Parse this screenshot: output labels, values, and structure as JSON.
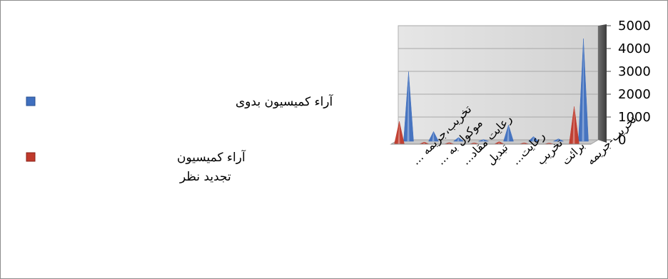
{
  "chart_data": {
    "type": "bar",
    "categories": [
      "تخریب،جریمه ...",
      "موکول به ...",
      "رعایت مقاد...",
      "تبدیل",
      "رعایت...",
      "تخریب",
      "برائت",
      "تخریب-جریمه"
    ],
    "series": [
      {
        "name": "آراء کمیسیون بدوی",
        "color": "#3f6fbf",
        "values": [
          3050,
          430,
          170,
          80,
          720,
          210,
          110,
          4500
        ]
      },
      {
        "name": "آراء کمیسیون تجدید نظر",
        "color": "#c0392b",
        "values": [
          1000,
          90,
          70,
          60,
          110,
          60,
          50,
          1650
        ]
      }
    ],
    "ylim": [
      0,
      5000
    ],
    "yticks": [
      "0",
      "1000",
      "2000",
      "3000",
      "4000",
      "5000"
    ],
    "y_axis_position": "right",
    "legend_position": "left",
    "grid": true,
    "three_d": true
  },
  "legend": {
    "primary": {
      "line1": "آراء کمیسیون بدوی"
    },
    "review": {
      "line1": "آراء کمیسیون",
      "line2": "تجدید نظر"
    }
  }
}
